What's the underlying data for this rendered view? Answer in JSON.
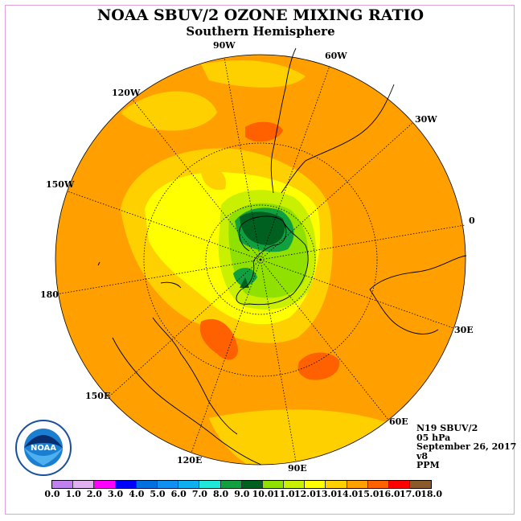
{
  "title": "NOAA SBUV/2 OZONE MIXING RATIO",
  "subtitle": "Southern Hemisphere",
  "longitude_labels": {
    "lon_90w": "90W",
    "lon_60w": "60W",
    "lon_30w": "30W",
    "lon_0": "0",
    "lon_30e": "30E",
    "lon_60e": "60E",
    "lon_90e": "90E",
    "lon_120e": "120E",
    "lon_150e": "150E",
    "lon_180": "180",
    "lon_150w": "150W",
    "lon_120w": "120W"
  },
  "info": {
    "instrument": "N19 SBUV/2",
    "level": "05 hPa",
    "date": "September 26, 2017",
    "version": "v8",
    "units": "PPM"
  },
  "logo_text": "NOAA",
  "logo_ring_text": "NATIONAL OCEANIC AND ATMOSPHERIC ADMINISTRATION · U.S. DEPARTMENT OF COMMERCE",
  "colorbar": {
    "colors": [
      "#c080f0",
      "#e0b0f0",
      "#ff00ff",
      "#0000ff",
      "#0070e0",
      "#1090f0",
      "#10b0f0",
      "#20e8d8",
      "#10a040",
      "#006020",
      "#90e000",
      "#c8f000",
      "#ffff00",
      "#ffd000",
      "#ffa000",
      "#ff6000",
      "#ff0000",
      "#8b5a2b"
    ],
    "ticks": [
      "0.0",
      "1.0",
      "2.0",
      "3.0",
      "4.0",
      "5.0",
      "6.0",
      "7.0",
      "8.0",
      "9.0",
      "10.0",
      "11.0",
      "12.0",
      "13.0",
      "14.0",
      "15.0",
      "16.0",
      "17.0",
      "18.0"
    ]
  }
}
